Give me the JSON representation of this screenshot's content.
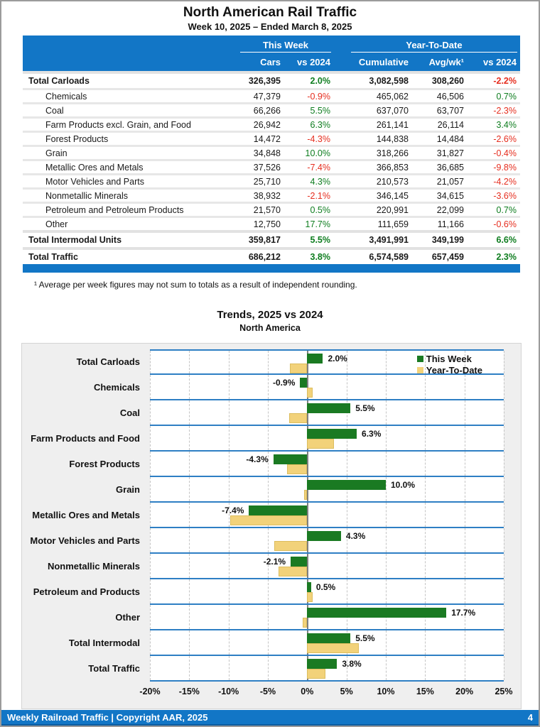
{
  "page": {
    "title": "North American Rail Traffic",
    "subtitle": "Week 10, 2025 – Ended March 8, 2025",
    "footnote": "¹ Average per week figures may not sum to totals as a result of independent rounding.",
    "footer": {
      "left": "Weekly Railroad Traffic | Copyright AAR, 2025",
      "page_number": "4"
    }
  },
  "colors": {
    "accent_blue": "#1276c6",
    "separator_blue": "#2e7fc4",
    "positive_green": "#0e7d1f",
    "negative_red": "#e62e1f",
    "bar_green": "#1a7a22",
    "bar_tan": "#f2d27a"
  },
  "table": {
    "group_headers": {
      "this_week": "This Week",
      "ytd": "Year-To-Date"
    },
    "columns": [
      "Cars",
      "vs 2024",
      "Cumulative",
      "Avg/wk¹",
      "vs 2024"
    ],
    "rows": [
      {
        "label": "Total Carloads",
        "total": true,
        "cars": "326,395",
        "wk_vs": 2.0,
        "cumulative": "3,082,598",
        "avg_wk": "308,260",
        "ytd_vs": -2.2
      },
      {
        "label": "Chemicals",
        "total": false,
        "cars": "47,379",
        "wk_vs": -0.9,
        "cumulative": "465,062",
        "avg_wk": "46,506",
        "ytd_vs": 0.7
      },
      {
        "label": "Coal",
        "total": false,
        "cars": "66,266",
        "wk_vs": 5.5,
        "cumulative": "637,070",
        "avg_wk": "63,707",
        "ytd_vs": -2.3
      },
      {
        "label": "Farm Products excl. Grain, and Food",
        "total": false,
        "cars": "26,942",
        "wk_vs": 6.3,
        "cumulative": "261,141",
        "avg_wk": "26,114",
        "ytd_vs": 3.4
      },
      {
        "label": "Forest Products",
        "total": false,
        "cars": "14,472",
        "wk_vs": -4.3,
        "cumulative": "144,838",
        "avg_wk": "14,484",
        "ytd_vs": -2.6
      },
      {
        "label": "Grain",
        "total": false,
        "cars": "34,848",
        "wk_vs": 10.0,
        "cumulative": "318,266",
        "avg_wk": "31,827",
        "ytd_vs": -0.4
      },
      {
        "label": "Metallic Ores and Metals",
        "total": false,
        "cars": "37,526",
        "wk_vs": -7.4,
        "cumulative": "366,853",
        "avg_wk": "36,685",
        "ytd_vs": -9.8
      },
      {
        "label": "Motor Vehicles and Parts",
        "total": false,
        "cars": "25,710",
        "wk_vs": 4.3,
        "cumulative": "210,573",
        "avg_wk": "21,057",
        "ytd_vs": -4.2
      },
      {
        "label": "Nonmetallic Minerals",
        "total": false,
        "cars": "38,932",
        "wk_vs": -2.1,
        "cumulative": "346,145",
        "avg_wk": "34,615",
        "ytd_vs": -3.6
      },
      {
        "label": "Petroleum and Petroleum Products",
        "total": false,
        "cars": "21,570",
        "wk_vs": 0.5,
        "cumulative": "220,991",
        "avg_wk": "22,099",
        "ytd_vs": 0.7
      },
      {
        "label": "Other",
        "total": false,
        "cars": "12,750",
        "wk_vs": 17.7,
        "cumulative": "111,659",
        "avg_wk": "11,166",
        "ytd_vs": -0.6
      },
      {
        "label": "Total Intermodal Units",
        "total": true,
        "cars": "359,817",
        "wk_vs": 5.5,
        "cumulative": "3,491,991",
        "avg_wk": "349,199",
        "ytd_vs": 6.6
      },
      {
        "label": "Total Traffic",
        "total": true,
        "cars": "686,212",
        "wk_vs": 3.8,
        "cumulative": "6,574,589",
        "avg_wk": "657,459",
        "ytd_vs": 2.3
      }
    ]
  },
  "chart_data": {
    "type": "bar",
    "orientation": "horizontal",
    "title": "Trends, 2025 vs 2024",
    "subtitle": "North America",
    "categories": [
      "Total Carloads",
      "Chemicals",
      "Coal",
      "Farm Products and Food",
      "Forest Products",
      "Grain",
      "Metallic Ores and Metals",
      "Motor Vehicles and Parts",
      "Nonmetallic Minerals",
      "Petroleum and Products",
      "Other",
      "Total Intermodal",
      "Total Traffic"
    ],
    "series": [
      {
        "name": "This Week",
        "color": "#1a7a22",
        "values": [
          2.0,
          -0.9,
          5.5,
          6.3,
          -4.3,
          10.0,
          -7.4,
          4.3,
          -2.1,
          0.5,
          17.7,
          5.5,
          3.8
        ]
      },
      {
        "name": "Year-To-Date",
        "color": "#f2d27a",
        "values": [
          -2.2,
          0.7,
          -2.3,
          3.4,
          -2.6,
          -0.4,
          -9.8,
          -4.2,
          -3.6,
          0.7,
          -0.6,
          6.6,
          2.3
        ]
      }
    ],
    "xlim": [
      -20,
      25
    ],
    "x_tick_step": 5,
    "x_tick_labels": [
      "-20%",
      "-15%",
      "-10%",
      "-5%",
      "0%",
      "5%",
      "10%",
      "15%",
      "20%",
      "25%"
    ],
    "bar_label_series": "This Week",
    "legend_position": "top-right",
    "grid": "vertical-dashed"
  }
}
